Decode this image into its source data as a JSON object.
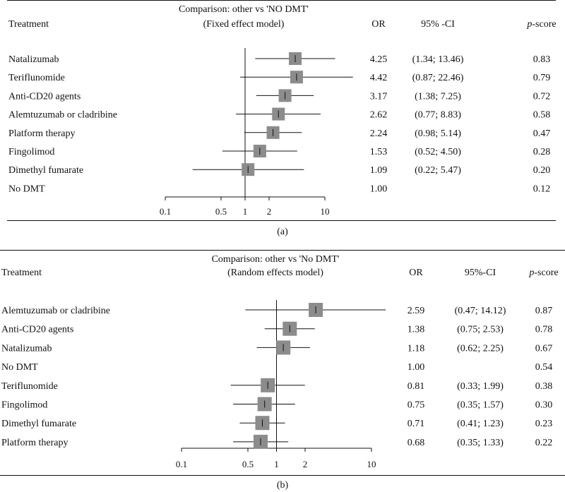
{
  "chart_data": [
    {
      "type": "forest",
      "title": "Comparison: other vs 'NO DMT'",
      "subtitle": "(Fixed effect model)",
      "caption": "(a)",
      "headers": {
        "treatment": "Treatment",
        "or": "OR",
        "ci": "95% -CI",
        "p_italic": "p",
        "p_rest": "-score"
      },
      "scale": "log",
      "xlim": [
        0.1,
        10
      ],
      "reference": 1,
      "ticks": [
        0.1,
        0.5,
        1,
        2,
        10
      ],
      "tick_labels": [
        "0.1",
        "0.5",
        "1",
        "2",
        "10"
      ],
      "rows": [
        {
          "label": "Natalizumab",
          "or": 4.25,
          "lo": 1.34,
          "hi": 13.46,
          "or_text": "4.25",
          "ci_text": "(1.34; 13.46)",
          "p_text": "0.83"
        },
        {
          "label": "Teriflunomide",
          "or": 4.42,
          "lo": 0.87,
          "hi": 22.46,
          "or_text": "4.42",
          "ci_text": "(0.87; 22.46)",
          "p_text": "0.79"
        },
        {
          "label": "Anti-CD20 agents",
          "or": 3.17,
          "lo": 1.38,
          "hi": 7.25,
          "or_text": "3.17",
          "ci_text": "(1.38; 7.25)",
          "p_text": "0.72"
        },
        {
          "label": "Alemtuzumab or cladribine",
          "or": 2.62,
          "lo": 0.77,
          "hi": 8.83,
          "or_text": "2.62",
          "ci_text": "(0.77; 8.83)",
          "p_text": "0.58"
        },
        {
          "label": "Platform therapy",
          "or": 2.24,
          "lo": 0.98,
          "hi": 5.14,
          "or_text": "2.24",
          "ci_text": "(0.98; 5.14)",
          "p_text": "0.47"
        },
        {
          "label": "Fingolimod",
          "or": 1.53,
          "lo": 0.52,
          "hi": 4.5,
          "or_text": "1.53",
          "ci_text": "(0.52; 4.50)",
          "p_text": "0.28"
        },
        {
          "label": "Dimethyl fumarate",
          "or": 1.09,
          "lo": 0.22,
          "hi": 5.47,
          "or_text": "1.09",
          "ci_text": "(0.22; 5.47)",
          "p_text": "0.20"
        },
        {
          "label": "No DMT",
          "or": null,
          "lo": null,
          "hi": null,
          "or_text": "1.00",
          "ci_text": "",
          "p_text": "0.12"
        }
      ]
    },
    {
      "type": "forest",
      "title": "Comparison: other vs 'No DMT'",
      "subtitle": "(Random effects model)",
      "caption": "(b)",
      "headers": {
        "treatment": "Treatment",
        "or": "OR",
        "ci": "95%-CI",
        "p_italic": "p",
        "p_rest": "-score"
      },
      "scale": "log",
      "xlim": [
        0.1,
        10
      ],
      "reference": 1,
      "ticks": [
        0.1,
        0.5,
        1,
        2,
        10
      ],
      "tick_labels": [
        "0.1",
        "0.5",
        "1",
        "2",
        "10"
      ],
      "rows": [
        {
          "label": "Alemtuzumab or cladribine",
          "or": 2.59,
          "lo": 0.47,
          "hi": 14.12,
          "or_text": "2.59",
          "ci_text": "(0.47; 14.12)",
          "p_text": "0.87"
        },
        {
          "label": "Anti-CD20 agents",
          "or": 1.38,
          "lo": 0.75,
          "hi": 2.53,
          "or_text": "1.38",
          "ci_text": "(0.75; 2.53)",
          "p_text": "0.78"
        },
        {
          "label": "Natalizumab",
          "or": 1.18,
          "lo": 0.62,
          "hi": 2.25,
          "or_text": "1.18",
          "ci_text": "(0.62; 2.25)",
          "p_text": "0.67"
        },
        {
          "label": "No DMT",
          "or": null,
          "lo": null,
          "hi": null,
          "or_text": "1.00",
          "ci_text": "",
          "p_text": "0.54"
        },
        {
          "label": "Teriflunomide",
          "or": 0.81,
          "lo": 0.33,
          "hi": 1.99,
          "or_text": "0.81",
          "ci_text": "(0.33; 1.99)",
          "p_text": "0.38"
        },
        {
          "label": " Fingolimod",
          "or": 0.75,
          "lo": 0.35,
          "hi": 1.57,
          "or_text": "0.75",
          "ci_text": "(0.35; 1.57)",
          "p_text": "0.30"
        },
        {
          "label": "Dimethyl fumarate",
          "or": 0.71,
          "lo": 0.41,
          "hi": 1.23,
          "or_text": "0.71",
          "ci_text": "(0.41; 1.23)",
          "p_text": "0.23"
        },
        {
          "label": "Platform therapy",
          "or": 0.68,
          "lo": 0.35,
          "hi": 1.33,
          "or_text": "0.68",
          "ci_text": "(0.35; 1.33)",
          "p_text": "0.22"
        }
      ]
    }
  ],
  "colors": {
    "marker": "#8c8c8c",
    "line": "#111111"
  }
}
